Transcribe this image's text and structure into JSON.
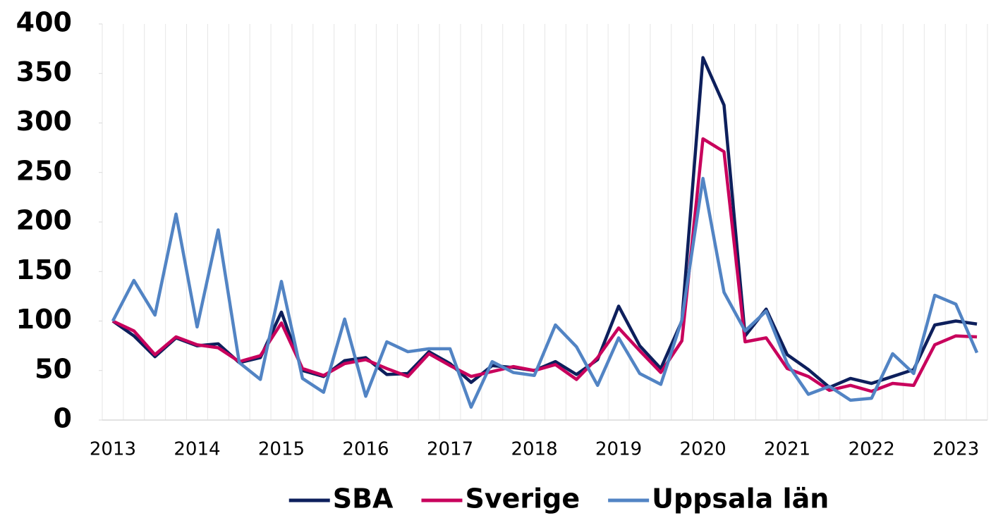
{
  "chart_data": {
    "type": "line",
    "categories": [
      "2013",
      null,
      null,
      null,
      "2014",
      null,
      null,
      null,
      "2015",
      null,
      null,
      null,
      "2016",
      null,
      null,
      null,
      "2017",
      null,
      null,
      null,
      "2018",
      null,
      null,
      null,
      "2019",
      null,
      null,
      null,
      "2020",
      null,
      null,
      null,
      "2021",
      null,
      null,
      null,
      "2022",
      null,
      null,
      null,
      "2023",
      null
    ],
    "series": [
      {
        "name": "SBA",
        "color": "#0d1f5c",
        "values": [
          100,
          85,
          64,
          83,
          75,
          77,
          58,
          63,
          109,
          50,
          44,
          60,
          63,
          46,
          47,
          69,
          57,
          38,
          55,
          53,
          50,
          59,
          46,
          61,
          115,
          75,
          52,
          100,
          366,
          318,
          85,
          112,
          66,
          51,
          33,
          42,
          37,
          44,
          51,
          96,
          100,
          97
        ]
      },
      {
        "name": "Sverige",
        "color": "#c8005c",
        "values": [
          100,
          90,
          66,
          84,
          76,
          73,
          59,
          65,
          98,
          52,
          45,
          57,
          61,
          52,
          44,
          67,
          55,
          44,
          49,
          54,
          50,
          56,
          41,
          63,
          93,
          70,
          48,
          80,
          284,
          271,
          79,
          83,
          52,
          44,
          30,
          35,
          29,
          37,
          35,
          76,
          85,
          84
        ]
      },
      {
        "name": "Uppsala län",
        "color": "#5284c4",
        "values": [
          100,
          141,
          106,
          208,
          94,
          192,
          58,
          41,
          140,
          42,
          28,
          102,
          24,
          79,
          69,
          72,
          72,
          13,
          59,
          48,
          45,
          96,
          74,
          35,
          83,
          47,
          36,
          101,
          244,
          129,
          90,
          110,
          57,
          26,
          34,
          20,
          22,
          67,
          47,
          126,
          117,
          68
        ]
      }
    ],
    "ylim": [
      0,
      400
    ],
    "yticks": [
      0,
      50,
      100,
      150,
      200,
      250,
      300,
      350,
      400
    ],
    "legend": "bottom"
  }
}
